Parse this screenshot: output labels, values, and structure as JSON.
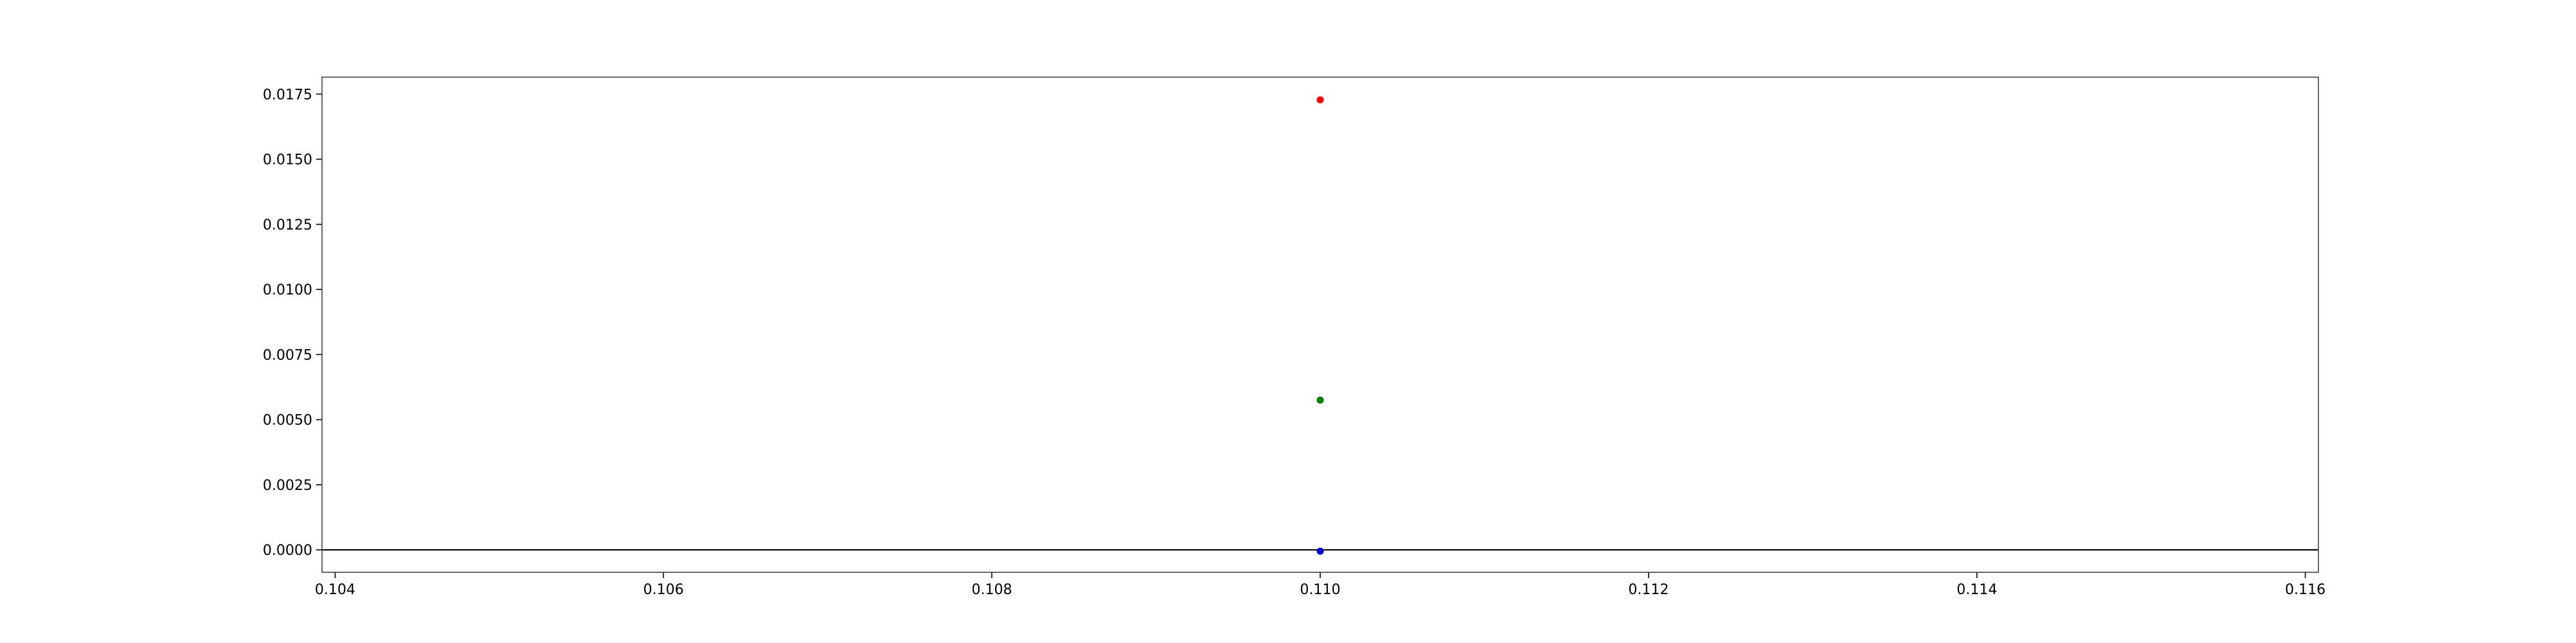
{
  "chart_data": {
    "type": "scatter",
    "title": "",
    "xlabel": "",
    "ylabel": "",
    "xlim": [
      0.10392,
      0.11608
    ],
    "ylim": [
      -0.00086,
      0.01815
    ],
    "x_ticks": [
      "0.104",
      "0.106",
      "0.108",
      "0.110",
      "0.112",
      "0.114",
      "0.116"
    ],
    "y_ticks": [
      "0.0000",
      "0.0025",
      "0.0050",
      "0.0075",
      "0.0100",
      "0.0125",
      "0.0150",
      "0.0175"
    ],
    "grid": false,
    "legend": "none",
    "reference_line": {
      "y": 0,
      "color": "#000000"
    },
    "series": [
      {
        "color": "#ff0000",
        "points": [
          {
            "x": 0.11,
            "y": 0.01728
          }
        ]
      },
      {
        "color": "#008000",
        "points": [
          {
            "x": 0.11,
            "y": 0.00575
          }
        ]
      },
      {
        "color": "#0000cc",
        "points": [
          {
            "x": 0.11,
            "y": -5e-05
          }
        ]
      }
    ]
  }
}
